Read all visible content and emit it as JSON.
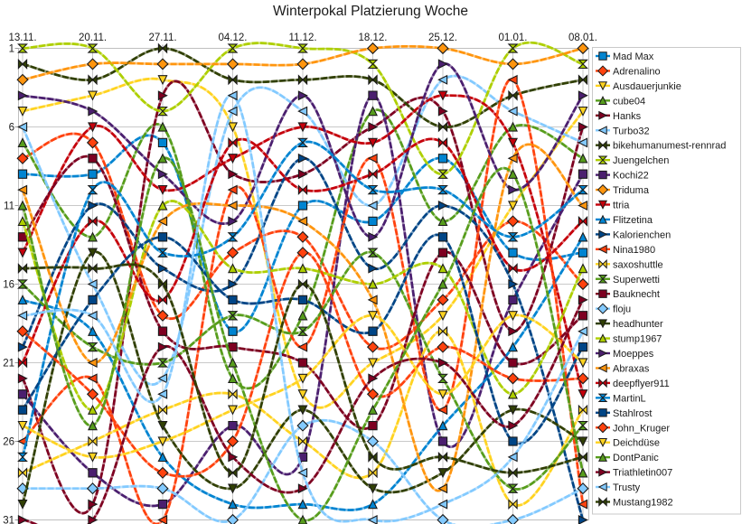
{
  "chart_data": {
    "type": "line",
    "title": "Winterpokal Platzierung Woche",
    "subtitle": "",
    "x_categories": [
      "13.11.",
      "20.11.",
      "27.11.",
      "04.12.",
      "11.12.",
      "18.12.",
      "25.12.",
      "01.01.",
      "08.01."
    ],
    "y_axis": {
      "inverted": true,
      "min": 1,
      "max": 31,
      "ticks": [
        1,
        6,
        11,
        16,
        21,
        26,
        31
      ]
    },
    "xlabel": "",
    "ylabel": "",
    "grid": true,
    "line_style": "smooth",
    "legend_position": "right",
    "series": [
      {
        "name": "Mad Max",
        "color": "#0084D1",
        "marker": "square",
        "ranks": [
          9,
          9,
          7,
          19,
          11,
          12,
          8,
          14,
          14
        ]
      },
      {
        "name": "Adrenalino",
        "color": "#FF420E",
        "marker": "diamond",
        "ranks": [
          8,
          7,
          18,
          14,
          13,
          20,
          17,
          12,
          16
        ]
      },
      {
        "name": "Ausdauerjunkie",
        "color": "#FFD320",
        "marker": "tri-down",
        "ranks": [
          5,
          4,
          3,
          6,
          23,
          21,
          18,
          11,
          5
        ]
      },
      {
        "name": "cube04",
        "color": "#579D1C",
        "marker": "tri-up",
        "ranks": [
          7,
          13,
          6,
          22,
          18,
          5,
          12,
          6,
          8
        ]
      },
      {
        "name": "Hanks",
        "color": "#7E0021",
        "marker": "tri-right",
        "ranks": [
          22,
          30,
          4,
          9,
          9,
          6,
          5,
          19,
          6
        ]
      },
      {
        "name": "Turbo32",
        "color": "#83CAFF",
        "marker": "tri-left",
        "ranks": [
          6,
          16,
          22,
          5,
          5,
          11,
          3,
          5,
          7
        ]
      },
      {
        "name": "bikehumanumest-rennrad",
        "color": "#314004",
        "marker": "bowtie",
        "ranks": [
          2,
          3,
          1,
          3,
          3,
          3,
          6,
          4,
          3
        ]
      },
      {
        "name": "Juengelchen",
        "color": "#AECF00",
        "marker": "hourglass",
        "ranks": [
          1,
          1,
          5,
          1,
          1,
          2,
          9,
          1,
          2
        ]
      },
      {
        "name": "Kochi22",
        "color": "#4B1F6F",
        "marker": "square",
        "ranks": [
          23,
          28,
          30,
          25,
          27,
          4,
          26,
          17,
          9
        ]
      },
      {
        "name": "Triduma",
        "color": "#FF950E",
        "marker": "diamond",
        "ranks": [
          3,
          2,
          2,
          2,
          2,
          1,
          1,
          2,
          1
        ]
      },
      {
        "name": "ttria",
        "color": "#C5000B",
        "marker": "tri-down",
        "ranks": [
          14,
          6,
          10,
          8,
          6,
          7,
          4,
          7,
          23
        ]
      },
      {
        "name": "Flitzetina",
        "color": "#0084D1",
        "marker": "tri-up",
        "ranks": [
          17,
          19,
          27,
          30,
          30,
          30,
          25,
          20,
          13
        ]
      },
      {
        "name": "Kalorienchen",
        "color": "#004586",
        "marker": "tri-right",
        "ranks": [
          20,
          11,
          15,
          16,
          8,
          15,
          11,
          16,
          31
        ]
      },
      {
        "name": "Nina1980",
        "color": "#FF420E",
        "marker": "tri-left",
        "ranks": [
          26,
          22,
          31,
          10,
          20,
          8,
          24,
          3,
          30
        ]
      },
      {
        "name": "saxoshuttle",
        "color": "#FFD320",
        "marker": "bowtie",
        "ranks": [
          28,
          26,
          24,
          23,
          26,
          28,
          19,
          30,
          24
        ]
      },
      {
        "name": "Superwetti",
        "color": "#579D1C",
        "marker": "hourglass",
        "ranks": [
          16,
          20,
          21,
          18,
          19,
          14,
          22,
          29,
          25
        ]
      },
      {
        "name": "Bauknecht",
        "color": "#7E0021",
        "marker": "square",
        "ranks": [
          13,
          8,
          19,
          20,
          21,
          25,
          14,
          21,
          18
        ]
      },
      {
        "name": "floju",
        "color": "#83CAFF",
        "marker": "diamond",
        "ranks": [
          29,
          29,
          29,
          31,
          25,
          26,
          31,
          31,
          29
        ]
      },
      {
        "name": "headhunter",
        "color": "#314004",
        "marker": "tri-down",
        "ranks": [
          30,
          14,
          25,
          29,
          24,
          29,
          28,
          24,
          26
        ]
      },
      {
        "name": "stump1967",
        "color": "#AECF00",
        "marker": "tri-up",
        "ranks": [
          12,
          24,
          11,
          15,
          15,
          16,
          15,
          23,
          15
        ]
      },
      {
        "name": "Moeppes",
        "color": "#4B1F6F",
        "marker": "tri-right",
        "ranks": [
          4,
          5,
          9,
          12,
          4,
          13,
          2,
          10,
          4
        ]
      },
      {
        "name": "Abraxas",
        "color": "#FF950E",
        "marker": "tri-left",
        "ranks": [
          10,
          21,
          12,
          11,
          12,
          17,
          29,
          8,
          11
        ]
      },
      {
        "name": "deepflyer911",
        "color": "#C5000B",
        "marker": "bowtie",
        "ranks": [
          21,
          12,
          17,
          7,
          10,
          9,
          7,
          15,
          12
        ]
      },
      {
        "name": "MartinL",
        "color": "#0084D1",
        "marker": "hourglass",
        "ranks": [
          27,
          10,
          14,
          13,
          7,
          10,
          10,
          13,
          10
        ]
      },
      {
        "name": "Stahlrost",
        "color": "#004586",
        "marker": "square",
        "ranks": [
          24,
          17,
          13,
          17,
          17,
          19,
          13,
          26,
          20
        ]
      },
      {
        "name": "John_Kruger",
        "color": "#FF420E",
        "marker": "diamond",
        "ranks": [
          19,
          23,
          28,
          26,
          14,
          23,
          20,
          22,
          22
        ]
      },
      {
        "name": "Deichdüse",
        "color": "#FFD320",
        "marker": "tri-down",
        "ranks": [
          25,
          27,
          26,
          24,
          22,
          18,
          23,
          18,
          21
        ]
      },
      {
        "name": "DontPanic",
        "color": "#579D1C",
        "marker": "tri-up",
        "ranks": [
          11,
          25,
          8,
          21,
          31,
          24,
          16,
          9,
          28
        ]
      },
      {
        "name": "Triathletin007",
        "color": "#7E0021",
        "marker": "tri-right",
        "ranks": [
          31,
          31,
          20,
          27,
          29,
          22,
          21,
          25,
          17
        ]
      },
      {
        "name": "Trusty",
        "color": "#83CAFF",
        "marker": "tri-left",
        "ranks": [
          18,
          18,
          23,
          4,
          28,
          31,
          30,
          27,
          19
        ]
      },
      {
        "name": "Mustang1982",
        "color": "#314004",
        "marker": "bowtie",
        "ranks": [
          15,
          15,
          16,
          28,
          16,
          27,
          27,
          28,
          27
        ]
      }
    ]
  },
  "style_colors": {
    "background": "#FFFFFF",
    "grid": "#C9C9C9",
    "plot_border": "#BFBFBF",
    "tick": "#9A9A9A",
    "text": "#1A1A1A",
    "marker_border": "#1A1A1A",
    "legend_border": "#C9C9C9"
  }
}
